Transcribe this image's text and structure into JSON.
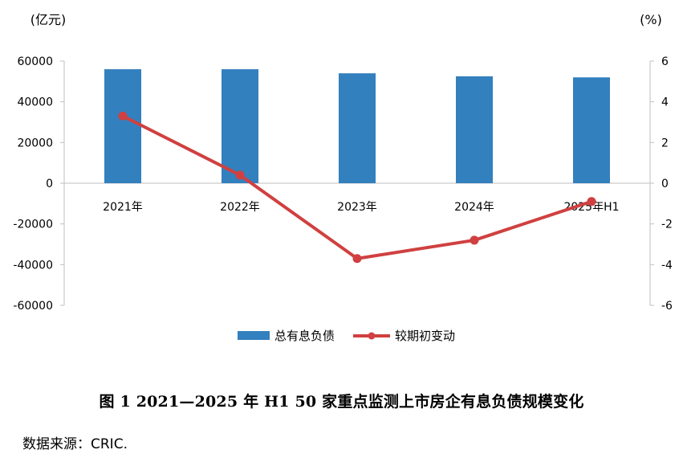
{
  "chart_data": {
    "type": "bar+line",
    "categories": [
      "2021年",
      "2022年",
      "2023年",
      "2024年",
      "2025年H1"
    ],
    "series": [
      {
        "name": "总有息负债",
        "type": "bar",
        "axis": "left",
        "color": "#3380BE",
        "values": [
          56000,
          56000,
          54000,
          52500,
          52000
        ]
      },
      {
        "name": "较期初变动",
        "type": "line",
        "axis": "right",
        "color": "#D04040",
        "values": [
          3.3,
          0.4,
          -3.7,
          -2.8,
          -0.9
        ]
      }
    ],
    "left_axis": {
      "unit_label": "(亿元)",
      "ylim": [
        -60000,
        60000
      ],
      "ticks": [
        "60000",
        "40000",
        "20000",
        "0",
        "-20000",
        "-40000",
        "-60000"
      ]
    },
    "right_axis": {
      "unit_label": "(%)",
      "ylim": [
        -6,
        6
      ],
      "ticks": [
        "6",
        "4",
        "2",
        "0",
        "-2",
        "-4",
        "-6"
      ]
    },
    "legend": [
      "总有息负债",
      "较期初变动"
    ],
    "title": "图 1  2021—2025 年 H1  50 家重点监测上市房企有息负债规模变化"
  },
  "source": "数据来源：CRIC."
}
